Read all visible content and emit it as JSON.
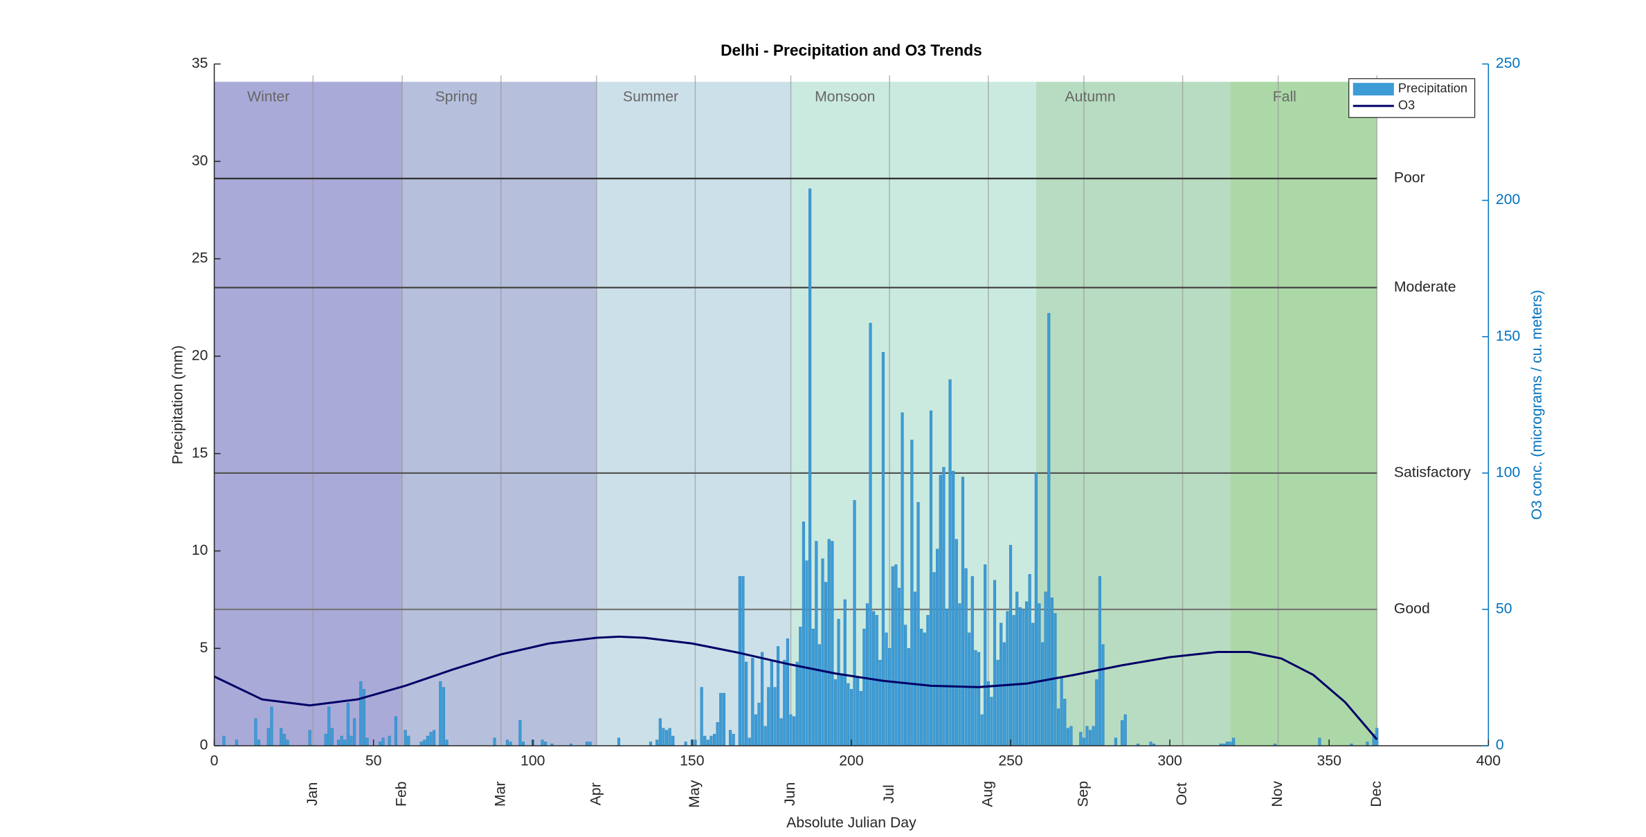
{
  "chart_data": {
    "type": "combo",
    "title": "Delhi - Precipitation and O3 Trends",
    "xlabel": "Absolute Julian Day",
    "ylabel": "Precipitation (mm)",
    "y2label": "O3 conc. (micrograms / cu. meters)",
    "xlim": [
      0,
      400
    ],
    "xticks": [
      0,
      50,
      100,
      150,
      200,
      250,
      300,
      350,
      400
    ],
    "ylim": [
      0,
      35
    ],
    "yticks": [
      0,
      5,
      10,
      15,
      20,
      25,
      30,
      35
    ],
    "y2lim": [
      0,
      250
    ],
    "y2ticks": [
      0,
      50,
      100,
      150,
      200,
      250
    ],
    "month_ticks": [
      {
        "value": 31,
        "label": "Jan"
      },
      {
        "value": 59,
        "label": "Feb"
      },
      {
        "value": 90,
        "label": "Mar"
      },
      {
        "value": 120,
        "label": "Apr"
      },
      {
        "value": 151,
        "label": "May"
      },
      {
        "value": 181,
        "label": "Jun"
      },
      {
        "value": 212,
        "label": "Jul"
      },
      {
        "value": 243,
        "label": "Aug"
      },
      {
        "value": 273,
        "label": "Sep"
      },
      {
        "value": 304,
        "label": "Oct"
      },
      {
        "value": 334,
        "label": "Nov"
      },
      {
        "value": 365,
        "label": "Dec"
      }
    ],
    "seasons": [
      {
        "name": "Winter",
        "start": 0,
        "end": 59,
        "color": "#aaaad9"
      },
      {
        "name": "Spring",
        "start": 59,
        "end": 120,
        "color": "#b6c0dc"
      },
      {
        "name": "Summer",
        "start": 120,
        "end": 181,
        "color": "#cce0e9"
      },
      {
        "name": "Monsoon",
        "start": 181,
        "end": 258,
        "color": "#cbeadf"
      },
      {
        "name": "Autumn",
        "start": 258,
        "end": 319,
        "color": "#b8dcc1"
      },
      {
        "name": "Fall",
        "start": 319,
        "end": 365,
        "color": "#acd8a7"
      }
    ],
    "thresholds": [
      {
        "name": "Poor",
        "value": 208,
        "axis": "y2",
        "color": "#333333"
      },
      {
        "name": "Moderate",
        "value": 168,
        "axis": "y2",
        "color": "#444444"
      },
      {
        "name": "Satisfactory",
        "value": 100,
        "axis": "y2",
        "color": "#555555"
      },
      {
        "name": "Good",
        "value": 50,
        "axis": "y2",
        "color": "#777777"
      }
    ],
    "legend": "upper right",
    "series": [
      {
        "name": "Precipitation",
        "type": "bar",
        "color": "#3d9cd6",
        "x": [
          3,
          7,
          13,
          14,
          17,
          18,
          21,
          22,
          23,
          30,
          35,
          36,
          37,
          39,
          40,
          41,
          42,
          43,
          44,
          46,
          47,
          48,
          52,
          53,
          55,
          57,
          60,
          61,
          65,
          66,
          67,
          68,
          69,
          71,
          72,
          73,
          88,
          92,
          93,
          96,
          97,
          100,
          103,
          104,
          106,
          112,
          117,
          118,
          127,
          137,
          139,
          140,
          141,
          142,
          143,
          144,
          148,
          150,
          151,
          153,
          154,
          155,
          156,
          157,
          158,
          159,
          160,
          162,
          163,
          165,
          166,
          167,
          168,
          169,
          170,
          171,
          172,
          173,
          174,
          175,
          176,
          177,
          178,
          179,
          180,
          181,
          182,
          183,
          184,
          185,
          186,
          187,
          188,
          189,
          190,
          191,
          192,
          193,
          194,
          195,
          196,
          197,
          198,
          199,
          200,
          201,
          202,
          203,
          204,
          205,
          206,
          207,
          208,
          209,
          210,
          211,
          212,
          213,
          214,
          215,
          216,
          217,
          218,
          219,
          220,
          221,
          222,
          223,
          224,
          225,
          226,
          227,
          228,
          229,
          230,
          231,
          232,
          233,
          234,
          235,
          236,
          237,
          238,
          239,
          240,
          241,
          242,
          243,
          244,
          245,
          246,
          247,
          248,
          249,
          250,
          251,
          252,
          253,
          254,
          255,
          256,
          257,
          258,
          259,
          260,
          261,
          262,
          263,
          264,
          265,
          266,
          267,
          268,
          269,
          272,
          273,
          274,
          275,
          276,
          277,
          278,
          279,
          283,
          285,
          286,
          290,
          294,
          295,
          316,
          317,
          318,
          319,
          320,
          333,
          347,
          357,
          362,
          364,
          365
        ],
        "values": [
          0.5,
          0.3,
          1.4,
          0.3,
          0.9,
          2.0,
          0.9,
          0.6,
          0.3,
          0.8,
          0.6,
          2.0,
          0.9,
          0.3,
          0.5,
          0.3,
          2.2,
          0.5,
          1.4,
          3.3,
          2.9,
          0.4,
          0.2,
          0.4,
          0.5,
          1.5,
          0.8,
          0.5,
          0.2,
          0.3,
          0.5,
          0.7,
          0.8,
          3.3,
          3.0,
          0.3,
          0.4,
          0.3,
          0.2,
          1.3,
          0.2,
          0.3,
          0.3,
          0.2,
          0.1,
          0.1,
          0.2,
          0.2,
          0.4,
          0.2,
          0.3,
          1.4,
          0.9,
          0.8,
          0.9,
          0.5,
          0.2,
          0.3,
          0.3,
          3.0,
          0.5,
          0.3,
          0.5,
          0.6,
          1.2,
          2.7,
          2.7,
          0.8,
          0.6,
          8.7,
          8.7,
          4.3,
          0.4,
          4.5,
          1.6,
          2.2,
          4.8,
          1.0,
          3.0,
          4.4,
          3.0,
          5.1,
          1.4,
          4.4,
          5.5,
          1.6,
          1.5,
          4.3,
          6.1,
          11.5,
          9.5,
          28.6,
          6.0,
          10.5,
          5.2,
          9.6,
          8.4,
          10.6,
          10.5,
          3.4,
          6.5,
          3.7,
          7.5,
          3.2,
          2.9,
          12.6,
          3.5,
          2.8,
          6.0,
          7.3,
          21.7,
          6.9,
          6.7,
          4.4,
          20.2,
          5.8,
          5.0,
          9.2,
          9.3,
          8.1,
          17.1,
          6.2,
          5.0,
          15.7,
          7.9,
          12.5,
          6.0,
          5.8,
          6.7,
          17.2,
          8.9,
          10.1,
          13.9,
          14.3,
          7.0,
          18.8,
          14.1,
          10.6,
          7.3,
          13.8,
          9.1,
          5.8,
          8.7,
          4.9,
          4.8,
          1.6,
          9.3,
          3.3,
          2.5,
          8.5,
          4.4,
          6.3,
          5.3,
          6.9,
          10.3,
          6.7,
          7.9,
          7.1,
          7.0,
          7.4,
          8.8,
          6.3,
          14.0,
          7.3,
          5.3,
          7.9,
          22.2,
          7.6,
          6.8,
          1.9,
          3.5,
          2.4,
          0.9,
          1.0,
          0.7,
          0.4,
          1.0,
          0.8,
          1.0,
          3.4,
          8.7,
          5.2,
          0.4,
          1.3,
          1.6,
          0.1,
          0.2,
          0.1,
          0.1,
          0.1,
          0.2,
          0.2,
          0.4,
          0.1,
          0.4,
          0.1,
          0.2,
          0.6,
          0.9
        ]
      },
      {
        "name": "O3",
        "type": "line",
        "axis": "y2",
        "color": "#000066",
        "x": [
          0,
          15,
          30,
          45,
          60,
          75,
          90,
          105,
          120,
          127,
          135,
          150,
          165,
          180,
          195,
          210,
          225,
          240,
          255,
          270,
          285,
          300,
          315,
          325,
          335,
          345,
          355,
          365
        ],
        "values": [
          25.4,
          17,
          14.8,
          17,
          22,
          28,
          33.5,
          37.5,
          39.6,
          40,
          39.6,
          37.5,
          34,
          30,
          26.5,
          23.8,
          22,
          21.5,
          22.8,
          26,
          29.5,
          32.5,
          34.4,
          34.4,
          32,
          26,
          16,
          2.3
        ]
      }
    ]
  }
}
